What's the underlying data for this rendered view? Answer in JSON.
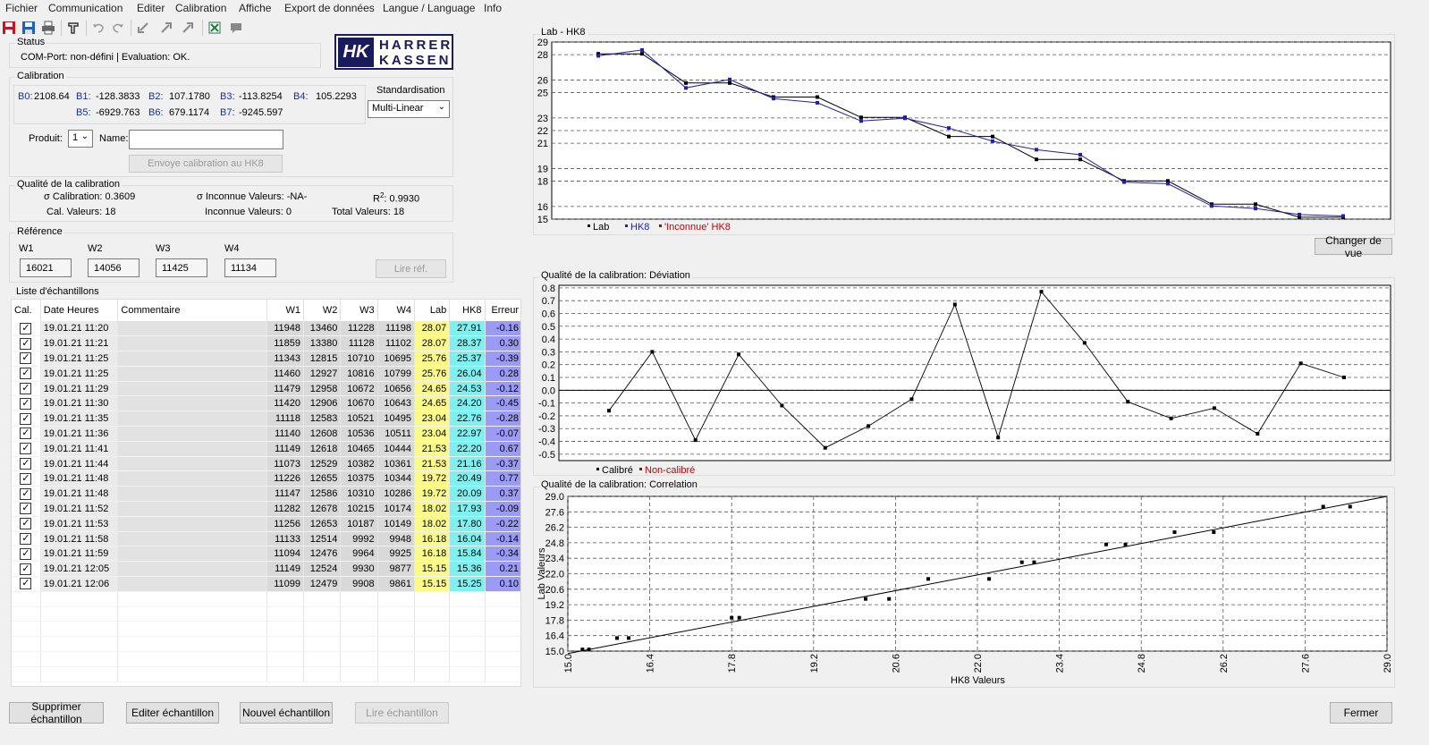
{
  "menu": [
    "Fichier",
    "Communication",
    "Editer",
    "Calibration",
    "Affiche",
    "Export de données",
    "Langue / Language",
    "Info"
  ],
  "toolbar": {
    "icons": [
      "exit-icon",
      "save-icon",
      "print-icon",
      "device-icon",
      "undo-icon",
      "redo-icon",
      "import-icon",
      "export-icon",
      "excel-icon",
      "comment-icon"
    ]
  },
  "status": {
    "title": "Status",
    "text": "COM-Port: non-défini  |  Evaluation: OK."
  },
  "logo": {
    "line1": "HARRER",
    "line2": "KASSEN",
    "mark": "HK"
  },
  "calibration": {
    "title": "Calibration",
    "coeffs": [
      {
        "k": "B0:",
        "v": "2108.64"
      },
      {
        "k": "B1:",
        "v": "-128.3833"
      },
      {
        "k": "B2:",
        "v": "107.1780"
      },
      {
        "k": "B3:",
        "v": "-113.8254"
      },
      {
        "k": "B4:",
        "v": "105.2293"
      },
      {
        "k": "B5:",
        "v": "-6929.763"
      },
      {
        "k": "B6:",
        "v": "679.1174"
      },
      {
        "k": "B7:",
        "v": "-9245.597"
      }
    ],
    "standardisation_label": "Standardisation",
    "standardisation_value": "Multi-Linear",
    "produit_label": "Produit:",
    "produit_value": "1",
    "name_label": "Name:",
    "name_value": "",
    "send_button": "Envoye calibration au  HK8"
  },
  "quality": {
    "title": "Qualité de la calibration",
    "sigma_cal": "σ Calibration: 0.3609",
    "sigma_unk": "σ Inconnue Valeurs:  -NA-",
    "r2_label": "R",
    "r2_sup": "2",
    "r2_value": ": 0.9930",
    "cal_vals": "Cal. Valeurs: 18",
    "unk_vals": "Inconnue Valeurs: 0",
    "total_vals": "Total Valeurs:  18"
  },
  "reference": {
    "title": "Référence",
    "labels": [
      "W1",
      "W2",
      "W3",
      "W4"
    ],
    "values": [
      "16021",
      "14056",
      "11425",
      "11134"
    ],
    "read_button": "Lire réf."
  },
  "samples": {
    "title": "Liste d'échantillons",
    "headers": [
      "Cal.",
      "Date Heures",
      "Commentaire",
      "W1",
      "W2",
      "W3",
      "W4",
      "Lab",
      "HK8",
      "Erreur"
    ],
    "rows": [
      [
        "19.01.21 11:20",
        "",
        "11948",
        "13460",
        "11228",
        "11198",
        "28.07",
        "27.91",
        "-0.16"
      ],
      [
        "19.01.21 11:21",
        "",
        "11859",
        "13380",
        "11128",
        "11102",
        "28.07",
        "28.37",
        "0.30"
      ],
      [
        "19.01.21 11:25",
        "",
        "11343",
        "12815",
        "10710",
        "10695",
        "25.76",
        "25.37",
        "-0.39"
      ],
      [
        "19.01.21 11:25",
        "",
        "11460",
        "12927",
        "10816",
        "10799",
        "25.76",
        "26.04",
        "0.28"
      ],
      [
        "19.01.21 11:29",
        "",
        "11479",
        "12958",
        "10672",
        "10656",
        "24.65",
        "24.53",
        "-0.12"
      ],
      [
        "19.01.21 11:30",
        "",
        "11420",
        "12906",
        "10670",
        "10643",
        "24.65",
        "24.20",
        "-0.45"
      ],
      [
        "19.01.21 11:35",
        "",
        "11118",
        "12583",
        "10521",
        "10495",
        "23.04",
        "22.76",
        "-0.28"
      ],
      [
        "19.01.21 11:36",
        "",
        "11140",
        "12608",
        "10536",
        "10511",
        "23.04",
        "22.97",
        "-0.07"
      ],
      [
        "19.01.21 11:41",
        "",
        "11149",
        "12618",
        "10465",
        "10444",
        "21.53",
        "22.20",
        "0.67"
      ],
      [
        "19.01.21 11:44",
        "",
        "11073",
        "12529",
        "10382",
        "10361",
        "21.53",
        "21.16",
        "-0.37"
      ],
      [
        "19.01.21 11:48",
        "",
        "11226",
        "12655",
        "10375",
        "10344",
        "19.72",
        "20.49",
        "0.77"
      ],
      [
        "19.01.21 11:48",
        "",
        "11147",
        "12586",
        "10310",
        "10286",
        "19.72",
        "20.09",
        "0.37"
      ],
      [
        "19.01.21 11:52",
        "",
        "11282",
        "12678",
        "10215",
        "10174",
        "18.02",
        "17.93",
        "-0.09"
      ],
      [
        "19.01.21 11:53",
        "",
        "11256",
        "12653",
        "10187",
        "10149",
        "18.02",
        "17.80",
        "-0.22"
      ],
      [
        "19.01.21 11:58",
        "",
        "11133",
        "12514",
        "9992",
        "9948",
        "16.18",
        "16.04",
        "-0.14"
      ],
      [
        "19.01.21 11:59",
        "",
        "11094",
        "12476",
        "9964",
        "9925",
        "16.18",
        "15.84",
        "-0.34"
      ],
      [
        "19.01.21 12:05",
        "",
        "11149",
        "12524",
        "9930",
        "9877",
        "15.15",
        "15.36",
        "0.21"
      ],
      [
        "19.01.21 12:06",
        "",
        "11099",
        "12479",
        "9908",
        "9861",
        "15.15",
        "15.25",
        "0.10"
      ]
    ]
  },
  "buttons": {
    "delete": "Supprimer échantillon",
    "edit": "Editer échantillon",
    "new": "Nouvel échantillon",
    "read": "Lire échantillon",
    "close": "Fermer",
    "change_view": "Changer de vue"
  },
  "colors": {
    "lab": "#000000",
    "hk8": "#1f1fb4",
    "unknown": "#c00000",
    "lab_cell": "#fbf98a",
    "hk8_cell": "#7ff0f0",
    "err_cell": "#9b9bf5"
  },
  "chart_data": [
    {
      "type": "line",
      "title": "Lab - HK8",
      "yticks": [
        "29",
        "28",
        "26",
        "25",
        "23",
        "22",
        "21",
        "19",
        "18",
        "16",
        "15"
      ],
      "ylim": [
        15,
        29
      ],
      "grid": true,
      "legend": [
        "Lab",
        "HK8",
        "'Inconnue' HK8"
      ],
      "legend_position": "bottom-left",
      "series": [
        {
          "name": "Lab",
          "values": [
            28.07,
            28.07,
            25.76,
            25.76,
            24.65,
            24.65,
            23.04,
            23.04,
            21.53,
            21.53,
            19.72,
            19.72,
            18.02,
            18.02,
            16.18,
            16.18,
            15.15,
            15.15
          ]
        },
        {
          "name": "HK8",
          "values": [
            27.91,
            28.37,
            25.37,
            26.04,
            24.53,
            24.2,
            22.76,
            22.97,
            22.2,
            21.16,
            20.49,
            20.09,
            17.93,
            17.8,
            16.04,
            15.84,
            15.36,
            15.25
          ]
        }
      ]
    },
    {
      "type": "line",
      "title": "Qualité de la calibration: Déviation",
      "yticks": [
        "0.8",
        "0.7",
        "0.6",
        "0.5",
        "0.4",
        "0.3",
        "0.2",
        "0.1",
        "0.0",
        "-0.1",
        "-0.2",
        "-0.3",
        "-0.4",
        "-0.5"
      ],
      "ylim": [
        -0.55,
        0.82
      ],
      "grid": true,
      "legend": [
        "Calibré",
        "Non-calibré"
      ],
      "legend_position": "bottom-left",
      "series": [
        {
          "name": "Calibré",
          "values": [
            -0.16,
            0.3,
            -0.39,
            0.28,
            -0.12,
            -0.45,
            -0.28,
            -0.07,
            0.67,
            -0.37,
            0.77,
            0.37,
            -0.09,
            -0.22,
            -0.14,
            -0.34,
            0.21,
            0.1
          ]
        }
      ]
    },
    {
      "type": "scatter",
      "title": "Qualité de la calibration: Correlation",
      "xlabel": "HK8 Valeurs",
      "ylabel": "Lab Valeurs",
      "xlim": [
        15.0,
        29.0
      ],
      "ylim": [
        15.0,
        29.0
      ],
      "xticks": [
        "15.0",
        "16.4",
        "17.8",
        "19.2",
        "20.6",
        "22.0",
        "23.4",
        "24.8",
        "26.2",
        "27.6",
        "29.0"
      ],
      "yticks": [
        "29.0",
        "27.6",
        "26.2",
        "24.8",
        "23.4",
        "22.0",
        "20.6",
        "19.2",
        "17.8",
        "16.4",
        "15.0"
      ],
      "grid": true,
      "points": [
        [
          27.91,
          28.07
        ],
        [
          28.37,
          28.07
        ],
        [
          25.37,
          25.76
        ],
        [
          26.04,
          25.76
        ],
        [
          24.53,
          24.65
        ],
        [
          24.2,
          24.65
        ],
        [
          22.76,
          23.04
        ],
        [
          22.97,
          23.04
        ],
        [
          22.2,
          21.53
        ],
        [
          21.16,
          21.53
        ],
        [
          20.49,
          19.72
        ],
        [
          20.09,
          19.72
        ],
        [
          17.93,
          18.02
        ],
        [
          17.8,
          18.02
        ],
        [
          16.04,
          16.18
        ],
        [
          15.84,
          16.18
        ],
        [
          15.36,
          15.15
        ],
        [
          15.25,
          15.15
        ]
      ],
      "fit_line": [
        [
          15.0,
          14.78
        ],
        [
          29.0,
          29.0
        ]
      ]
    }
  ]
}
